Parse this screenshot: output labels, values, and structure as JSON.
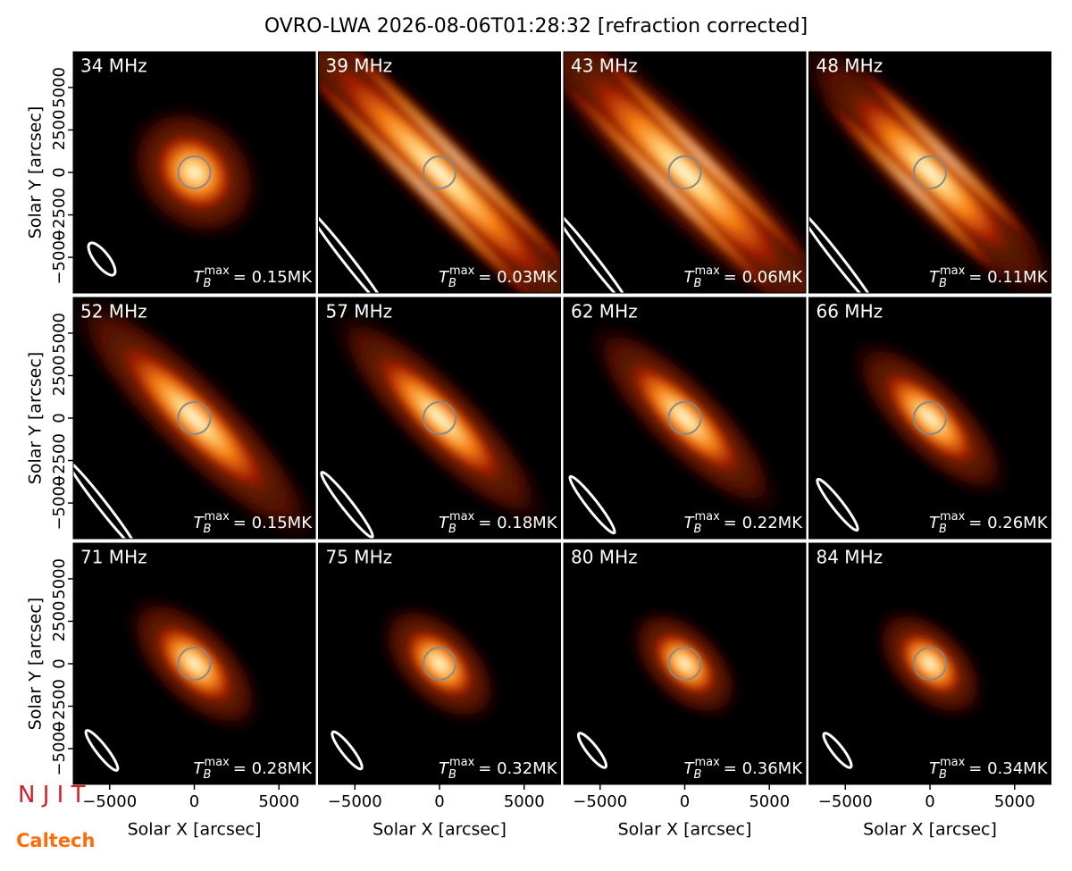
{
  "title": "OVRO-LWA 2026-08-06T01:28:32 [refraction corrected]",
  "x_label": "Solar X [arcsec]",
  "y_label": "Solar Y [arcsec]",
  "xlim": [
    -7150,
    7150
  ],
  "ylim": [
    -7100,
    7100
  ],
  "xticks": [
    {
      "value": -5000,
      "label": "−5000"
    },
    0,
    5000
  ],
  "yticks": [
    {
      "value": -5000,
      "label": "−5000"
    },
    {
      "value": -2500,
      "label": "−2500"
    },
    0,
    2500,
    5000
  ],
  "brightness_symbol": {
    "main": "T",
    "sub": "B",
    "sup": "max"
  },
  "panels": [
    {
      "freq": "34 MHz",
      "tmax": "= 0.15MK"
    },
    {
      "freq": "39 MHz",
      "tmax": "= 0.03MK"
    },
    {
      "freq": "43 MHz",
      "tmax": "= 0.06MK"
    },
    {
      "freq": "48 MHz",
      "tmax": "= 0.11MK"
    },
    {
      "freq": "52 MHz",
      "tmax": "= 0.15MK"
    },
    {
      "freq": "57 MHz",
      "tmax": "= 0.18MK"
    },
    {
      "freq": "62 MHz",
      "tmax": "= 0.22MK"
    },
    {
      "freq": "66 MHz",
      "tmax": "= 0.26MK"
    },
    {
      "freq": "71 MHz",
      "tmax": "= 0.28MK"
    },
    {
      "freq": "75 MHz",
      "tmax": "= 0.32MK"
    },
    {
      "freq": "80 MHz",
      "tmax": "= 0.36MK"
    },
    {
      "freq": "84 MHz",
      "tmax": "= 0.34MK"
    }
  ],
  "logos": {
    "njit": "N J I T",
    "caltech": "Caltech"
  }
}
